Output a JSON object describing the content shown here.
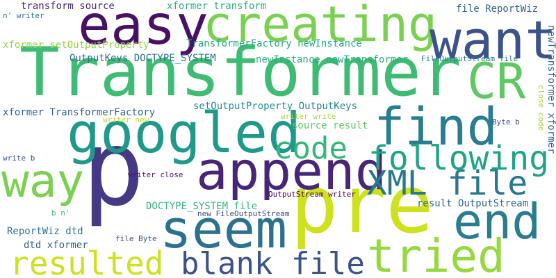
{
  "words": [
    {
      "text": "Transformer",
      "color": "#3fbc73"
    },
    {
      "text": "p",
      "color": "#443a83"
    },
    {
      "text": "pre",
      "color": "#cde11d"
    },
    {
      "text": "easy",
      "color": "#471164"
    },
    {
      "text": "creating",
      "color": "#7ad151"
    },
    {
      "text": "want",
      "color": "#3b528b"
    },
    {
      "text": "CR",
      "color": "#5ec962"
    },
    {
      "text": "googled",
      "color": "#1f9a8a"
    },
    {
      "text": "find",
      "color": "#287d8e"
    },
    {
      "text": "append",
      "color": "#482677"
    },
    {
      "text": "way",
      "color": "#7ad151"
    },
    {
      "text": "seem",
      "color": "#2c728e"
    },
    {
      "text": "end",
      "color": "#287d8e"
    },
    {
      "text": "tried",
      "color": "#95d840"
    },
    {
      "text": "XML file",
      "color": "#2a788e"
    },
    {
      "text": "following",
      "color": "#20a486"
    },
    {
      "text": "code",
      "color": "#35b779"
    },
    {
      "text": "resulted",
      "color": "#cde11d"
    },
    {
      "text": "blank file",
      "color": "#3b528b"
    },
    {
      "text": "transform source",
      "color": "#482677"
    },
    {
      "text": "xformer transform",
      "color": "#29af7f"
    },
    {
      "text": "file ReportWiz",
      "color": "#33638d"
    },
    {
      "text": "n' writer",
      "color": "#2c728e"
    },
    {
      "text": "xformer setOutputProperty",
      "color": "#8fd744"
    },
    {
      "text": "TransformerFactory newInstance",
      "color": "#22a884"
    },
    {
      "text": "OutputKeys DOCTYPE_SYSTEM",
      "color": "#2c728e"
    },
    {
      "text": "newInstance newTransformer",
      "color": "#29af7f"
    },
    {
      "text": "FileOutputStream file",
      "color": "#2a788e"
    },
    {
      "text": "xformer TransformerFactory",
      "color": "#31688e"
    },
    {
      "text": "setOutputProperty OutputKeys",
      "color": "#238a8d"
    },
    {
      "text": "writer new",
      "color": "#bddf26"
    },
    {
      "text": "writer write",
      "color": "#a0da39"
    },
    {
      "text": "source result",
      "color": "#5ec962"
    },
    {
      "text": "Byte b",
      "color": "#3e4a89"
    },
    {
      "text": "write b",
      "color": "#3b528b"
    },
    {
      "text": "writer close",
      "color": "#48186a"
    },
    {
      "text": "DOCTYPE_SYSTEM file",
      "color": "#35b779"
    },
    {
      "text": "OutputStream writer",
      "color": "#440154"
    },
    {
      "text": "result OutputStream",
      "color": "#31688e"
    },
    {
      "text": "b n'",
      "color": "#44bf70"
    },
    {
      "text": "new FileOutputStream",
      "color": "#3e4a89"
    },
    {
      "text": "ReportWiz dtd",
      "color": "#2a788e"
    },
    {
      "text": "file Byte",
      "color": "#3b528b"
    },
    {
      "text": "dtd xformer",
      "color": "#33638d"
    },
    {
      "text": "close code",
      "color": "#a0da39"
    },
    {
      "text": "newTransformer xformer",
      "color": "#31688e"
    }
  ]
}
